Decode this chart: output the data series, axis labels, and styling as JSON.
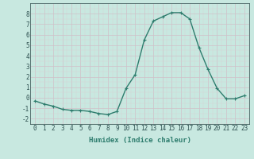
{
  "x": [
    0,
    1,
    2,
    3,
    4,
    5,
    6,
    7,
    8,
    9,
    10,
    11,
    12,
    13,
    14,
    15,
    16,
    17,
    18,
    19,
    20,
    21,
    22,
    23
  ],
  "y": [
    -0.3,
    -0.6,
    -0.8,
    -1.1,
    -1.2,
    -1.2,
    -1.3,
    -1.5,
    -1.6,
    -1.3,
    0.9,
    2.2,
    5.5,
    7.3,
    7.7,
    8.1,
    8.1,
    7.5,
    4.8,
    2.7,
    0.9,
    -0.1,
    -0.1,
    0.2
  ],
  "line_color": "#2e7d6e",
  "marker": "+",
  "marker_size": 3,
  "marker_linewidth": 0.8,
  "xlabel": "Humidex (Indice chaleur)",
  "xlim": [
    -0.5,
    23.5
  ],
  "ylim": [
    -2.5,
    9.0
  ],
  "yticks": [
    -2,
    -1,
    0,
    1,
    2,
    3,
    4,
    5,
    6,
    7,
    8
  ],
  "xticks": [
    0,
    1,
    2,
    3,
    4,
    5,
    6,
    7,
    8,
    9,
    10,
    11,
    12,
    13,
    14,
    15,
    16,
    17,
    18,
    19,
    20,
    21,
    22,
    23
  ],
  "grid_major_color": "#d0c0c8",
  "grid_minor_color": "#d8d0d4",
  "bg_color": "#c8e8e0",
  "tick_label_fontsize": 5.5,
  "xlabel_fontsize": 6.5,
  "line_width": 1.0
}
